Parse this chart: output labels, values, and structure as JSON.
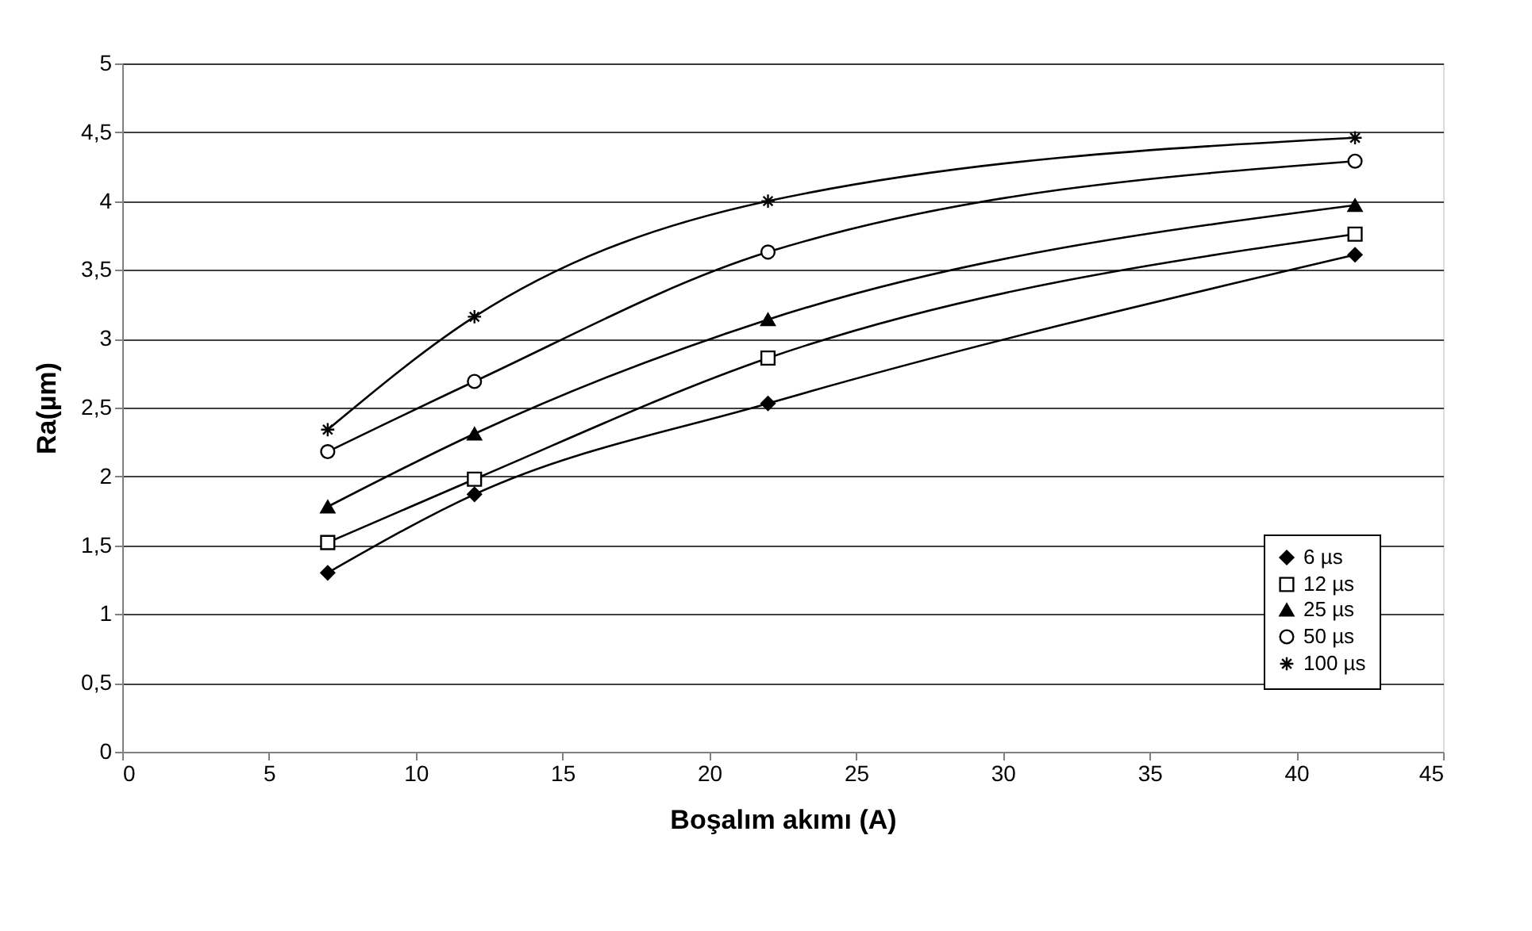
{
  "chart_data": {
    "type": "line",
    "xlabel": "Boşalım akımı (A)",
    "ylabel": "Ra(µm)",
    "x": [
      7,
      12,
      22,
      42
    ],
    "series": [
      {
        "name": "6 µs",
        "color": "#000000",
        "marker": "diamond",
        "values": [
          1.3,
          1.87,
          2.53,
          3.61
        ]
      },
      {
        "name": "12 µs",
        "color": "#000000",
        "marker": "square",
        "values": [
          1.52,
          1.98,
          2.86,
          3.76
        ]
      },
      {
        "name": "25 µs",
        "color": "#000000",
        "marker": "triangle",
        "values": [
          1.78,
          2.31,
          3.14,
          3.97
        ]
      },
      {
        "name": "50 µs",
        "color": "#000000",
        "marker": "circle",
        "values": [
          2.18,
          2.69,
          3.63,
          4.29
        ]
      },
      {
        "name": "100 µs",
        "color": "#000000",
        "marker": "cross",
        "values": [
          2.34,
          3.16,
          4.0,
          4.46
        ]
      }
    ],
    "xlim": [
      0,
      45
    ],
    "xticks": [
      0,
      5,
      10,
      15,
      20,
      25,
      30,
      35,
      40,
      45
    ],
    "ylim": [
      0,
      5
    ],
    "yticks": [
      0,
      {
        "value": 0.5,
        "label": "0,5"
      },
      1,
      {
        "value": 1.5,
        "label": "1,5"
      },
      2,
      {
        "value": 2.5,
        "label": "2,5"
      },
      3,
      {
        "value": 3.5,
        "label": "3,5"
      },
      4,
      {
        "value": 4.5,
        "label": "4,5"
      },
      5
    ],
    "grid": "y",
    "legend": "bottom right",
    "line_style": "solid"
  }
}
